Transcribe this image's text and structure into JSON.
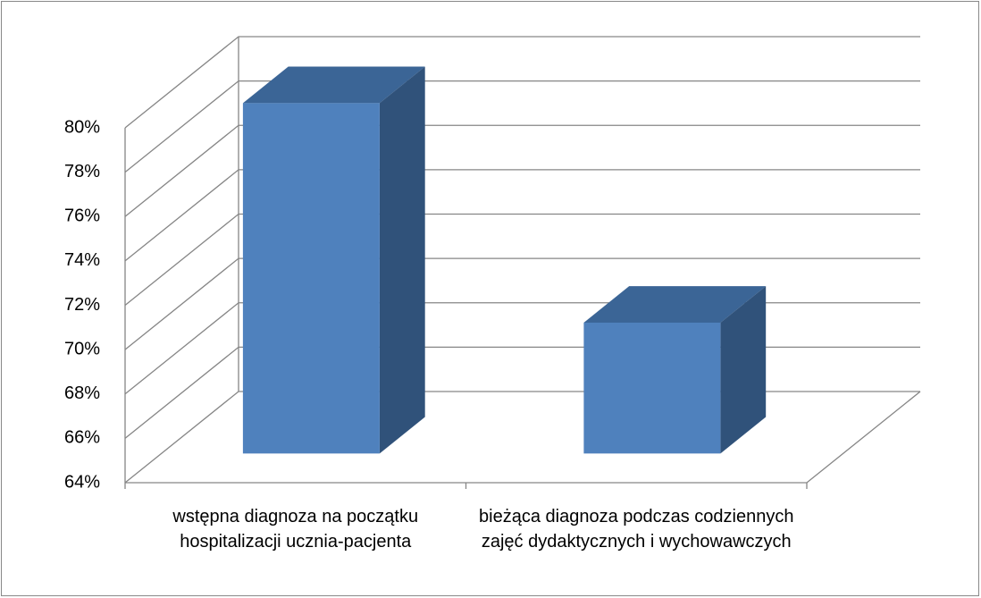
{
  "chart_data": {
    "type": "bar3d",
    "categories": [
      "wstępna diagnoza na początku hospitalizacji ucznia-pacjenta",
      "bieżąca diagnoza podczas codziennych zajęć dydaktycznych i wychowawczych"
    ],
    "values": [
      79.8,
      69.9
    ],
    "color": "#4f81bd",
    "ylim": [
      64,
      80
    ],
    "yticks": [
      {
        "value": 64,
        "label": "64%"
      },
      {
        "value": 66,
        "label": "66%"
      },
      {
        "value": 68,
        "label": "68%"
      },
      {
        "value": 70,
        "label": "70%"
      },
      {
        "value": 72,
        "label": "72%"
      },
      {
        "value": 74,
        "label": "74%"
      },
      {
        "value": 76,
        "label": "76%"
      },
      {
        "value": 78,
        "label": "78%"
      },
      {
        "value": 80,
        "label": "80%"
      }
    ],
    "grid": true
  }
}
